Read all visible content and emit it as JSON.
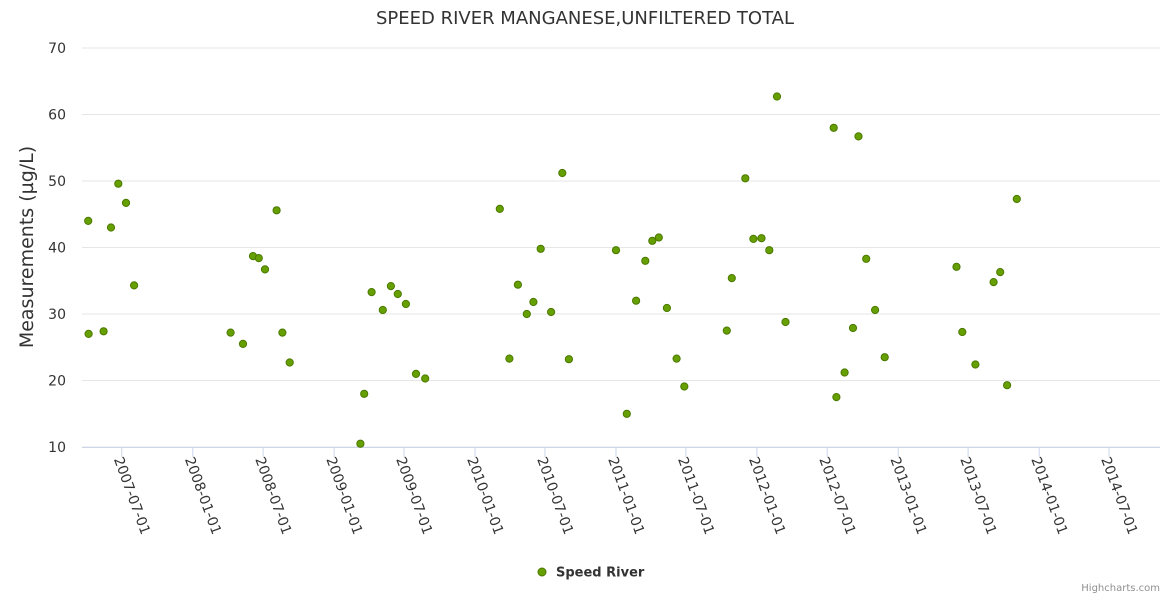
{
  "chart_data": {
    "type": "scatter",
    "title": "SPEED RIVER MANGANESE,UNFILTERED TOTAL",
    "ylabel": "Measurements (µg/L)",
    "xlabel": "",
    "ylim": [
      10,
      70
    ],
    "yticks": [
      10,
      20,
      30,
      40,
      50,
      60,
      70
    ],
    "xlim": [
      "2007-03-20",
      "2014-11-10"
    ],
    "xticks": [
      "2007-07-01",
      "2008-01-01",
      "2008-07-01",
      "2009-01-01",
      "2009-07-01",
      "2010-01-01",
      "2010-07-01",
      "2011-01-01",
      "2011-07-01",
      "2012-01-01",
      "2012-07-01",
      "2013-01-01",
      "2013-07-01",
      "2014-01-01",
      "2014-07-01"
    ],
    "grid": true,
    "legend_position": "bottom-center",
    "series": [
      {
        "name": "Speed River",
        "color": "#66a000",
        "points": [
          [
            "2007-04-05",
            44.0
          ],
          [
            "2007-04-06",
            27.0
          ],
          [
            "2007-05-15",
            27.4
          ],
          [
            "2007-06-03",
            43.0
          ],
          [
            "2007-06-22",
            49.6
          ],
          [
            "2007-07-12",
            46.7
          ],
          [
            "2007-08-02",
            34.3
          ],
          [
            "2008-04-08",
            27.2
          ],
          [
            "2008-05-10",
            25.5
          ],
          [
            "2008-06-05",
            38.7
          ],
          [
            "2008-06-20",
            38.4
          ],
          [
            "2008-07-06",
            36.7
          ],
          [
            "2008-08-05",
            45.6
          ],
          [
            "2008-08-20",
            27.2
          ],
          [
            "2008-09-08",
            22.7
          ],
          [
            "2009-03-10",
            10.5
          ],
          [
            "2009-03-20",
            18.0
          ],
          [
            "2009-04-08",
            33.3
          ],
          [
            "2009-05-07",
            30.6
          ],
          [
            "2009-05-28",
            34.2
          ],
          [
            "2009-06-15",
            33.0
          ],
          [
            "2009-07-06",
            31.5
          ],
          [
            "2009-08-01",
            21.0
          ],
          [
            "2009-08-25",
            20.3
          ],
          [
            "2010-03-06",
            45.8
          ],
          [
            "2010-03-31",
            23.3
          ],
          [
            "2010-04-22",
            34.4
          ],
          [
            "2010-05-15",
            30.0
          ],
          [
            "2010-06-01",
            31.8
          ],
          [
            "2010-06-20",
            39.8
          ],
          [
            "2010-07-17",
            30.3
          ],
          [
            "2010-08-15",
            51.2
          ],
          [
            "2010-09-01",
            23.2
          ],
          [
            "2011-01-01",
            39.6
          ],
          [
            "2011-01-29",
            15.0
          ],
          [
            "2011-02-22",
            32.0
          ],
          [
            "2011-03-18",
            38.0
          ],
          [
            "2011-04-05",
            41.0
          ],
          [
            "2011-04-22",
            41.5
          ],
          [
            "2011-05-13",
            30.9
          ],
          [
            "2011-06-07",
            23.3
          ],
          [
            "2011-06-27",
            19.1
          ],
          [
            "2011-10-15",
            27.5
          ],
          [
            "2011-10-28",
            35.4
          ],
          [
            "2011-12-02",
            50.4
          ],
          [
            "2011-12-23",
            41.3
          ],
          [
            "2012-01-13",
            41.4
          ],
          [
            "2012-02-02",
            39.6
          ],
          [
            "2012-02-22",
            62.7
          ],
          [
            "2012-03-15",
            28.8
          ],
          [
            "2012-07-18",
            58.0
          ],
          [
            "2012-07-25",
            17.5
          ],
          [
            "2012-08-15",
            21.2
          ],
          [
            "2012-09-06",
            27.9
          ],
          [
            "2012-09-20",
            56.7
          ],
          [
            "2012-10-10",
            38.3
          ],
          [
            "2012-11-02",
            30.6
          ],
          [
            "2012-11-27",
            23.5
          ],
          [
            "2013-06-01",
            37.1
          ],
          [
            "2013-06-16",
            27.3
          ],
          [
            "2013-07-20",
            22.4
          ],
          [
            "2013-09-05",
            34.8
          ],
          [
            "2013-09-22",
            36.3
          ],
          [
            "2013-10-10",
            19.3
          ],
          [
            "2013-11-04",
            47.3
          ]
        ]
      }
    ]
  },
  "credit": "Highcharts.com"
}
